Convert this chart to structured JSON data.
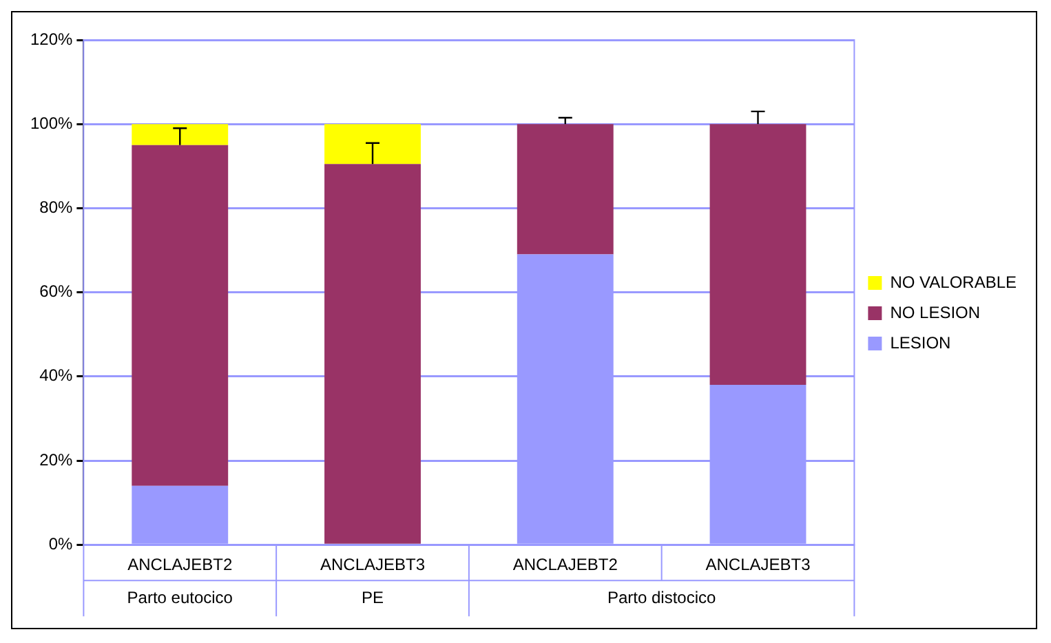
{
  "chart_data": {
    "type": "bar",
    "stacked": true,
    "categories": [
      "ANCLAJEBT2",
      "ANCLAJEBT3",
      "ANCLAJEBT2",
      "ANCLAJEBT3"
    ],
    "series": [
      {
        "name": "LESION",
        "color": "#9999ff",
        "values": [
          14,
          0,
          69,
          38
        ]
      },
      {
        "name": "NO LESION",
        "color": "#993366",
        "values": [
          81,
          90.5,
          31,
          62
        ],
        "errors": [
          [
            95,
            99
          ],
          [
            90.5,
            95.5
          ],
          [
            100,
            101.5
          ],
          [
            100,
            103
          ]
        ]
      },
      {
        "name": "NO VALORABLE",
        "color": "#ffff00",
        "values": [
          5,
          9.5,
          0,
          0
        ]
      }
    ],
    "ylim": [
      0,
      120
    ],
    "yticks": [
      {
        "value": 0,
        "label": "0%"
      },
      {
        "value": 20,
        "label": "20%"
      },
      {
        "value": 40,
        "label": "40%"
      },
      {
        "value": 60,
        "label": "60%"
      },
      {
        "value": 80,
        "label": "80%"
      },
      {
        "value": 100,
        "label": "100%"
      },
      {
        "value": 120,
        "label": "120%"
      }
    ],
    "grid": "y",
    "legend": "right",
    "annotations": [
      "Parto eutocico",
      "PE",
      "Parto distocico"
    ]
  }
}
